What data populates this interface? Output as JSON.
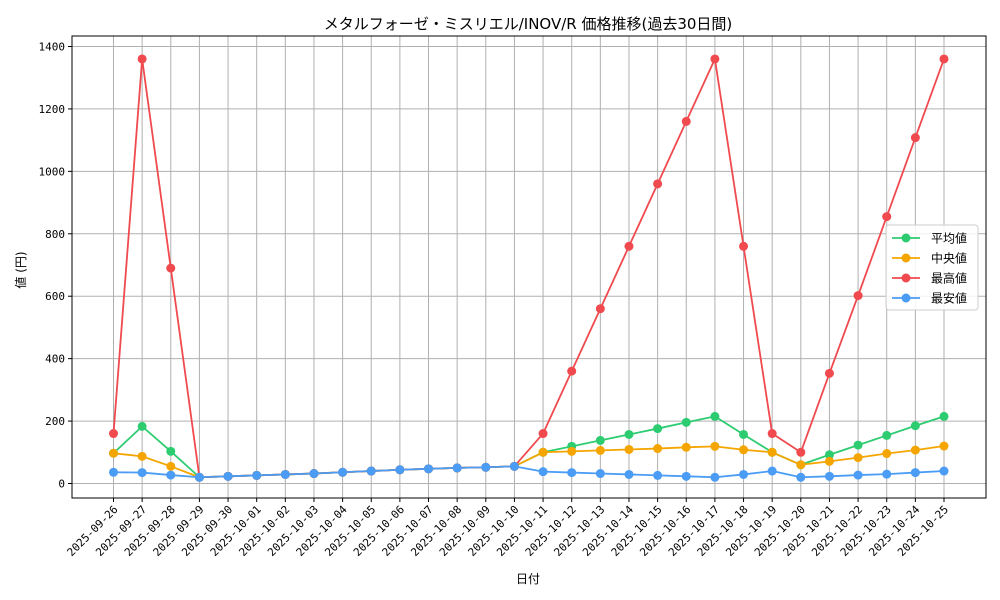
{
  "chart_data": {
    "type": "line",
    "title": "メタルフォーゼ・ミスリエル/INOV/R 価格推移(過去30日間)",
    "xlabel": "日付",
    "ylabel": "値 (円)",
    "ylim": [
      -45,
      1440
    ],
    "yticks": [
      0,
      200,
      400,
      600,
      800,
      1000,
      1200,
      1400
    ],
    "grid": true,
    "legend_position": "center right",
    "categories": [
      "2025-09-26",
      "2025-09-27",
      "2025-09-28",
      "2025-09-29",
      "2025-09-30",
      "2025-10-01",
      "2025-10-02",
      "2025-10-03",
      "2025-10-04",
      "2025-10-05",
      "2025-10-06",
      "2025-10-07",
      "2025-10-08",
      "2025-10-09",
      "2025-10-10",
      "2025-10-11",
      "2025-10-12",
      "2025-10-13",
      "2025-10-14",
      "2025-10-15",
      "2025-10-16",
      "2025-10-17",
      "2025-10-18",
      "2025-10-19",
      "2025-10-20",
      "2025-10-21",
      "2025-10-22",
      "2025-10-23",
      "2025-10-24",
      "2025-10-25"
    ],
    "series": [
      {
        "name": "平均値",
        "color": "#2ecc71",
        "values": [
          97,
          183,
          103,
          20,
          23,
          26,
          29,
          32,
          36,
          40,
          44,
          47,
          50,
          52,
          55,
          100,
          119,
          138,
          157,
          176,
          196,
          215,
          157,
          100,
          60,
          92,
          123,
          154,
          185,
          215
        ]
      },
      {
        "name": "中央値",
        "color": "#f5a500",
        "values": [
          97,
          87,
          55,
          20,
          23,
          26,
          29,
          32,
          36,
          40,
          44,
          47,
          50,
          52,
          55,
          100,
          103,
          106,
          109,
          112,
          116,
          119,
          108,
          100,
          60,
          71,
          83,
          96,
          107,
          120
        ]
      },
      {
        "name": "最高値",
        "color": "#f04a4f",
        "values": [
          160,
          1360,
          690,
          20,
          23,
          26,
          29,
          32,
          36,
          40,
          44,
          47,
          50,
          52,
          55,
          160,
          360,
          560,
          760,
          960,
          1160,
          1360,
          760,
          160,
          100,
          353,
          602,
          855,
          1108,
          1360
        ]
      },
      {
        "name": "最安値",
        "color": "#4a9cf5",
        "values": [
          36,
          35,
          27,
          20,
          23,
          26,
          29,
          32,
          36,
          40,
          44,
          47,
          50,
          52,
          55,
          38,
          35,
          32,
          29,
          26,
          23,
          20,
          29,
          40,
          20,
          23,
          27,
          30,
          35,
          40
        ]
      }
    ]
  }
}
